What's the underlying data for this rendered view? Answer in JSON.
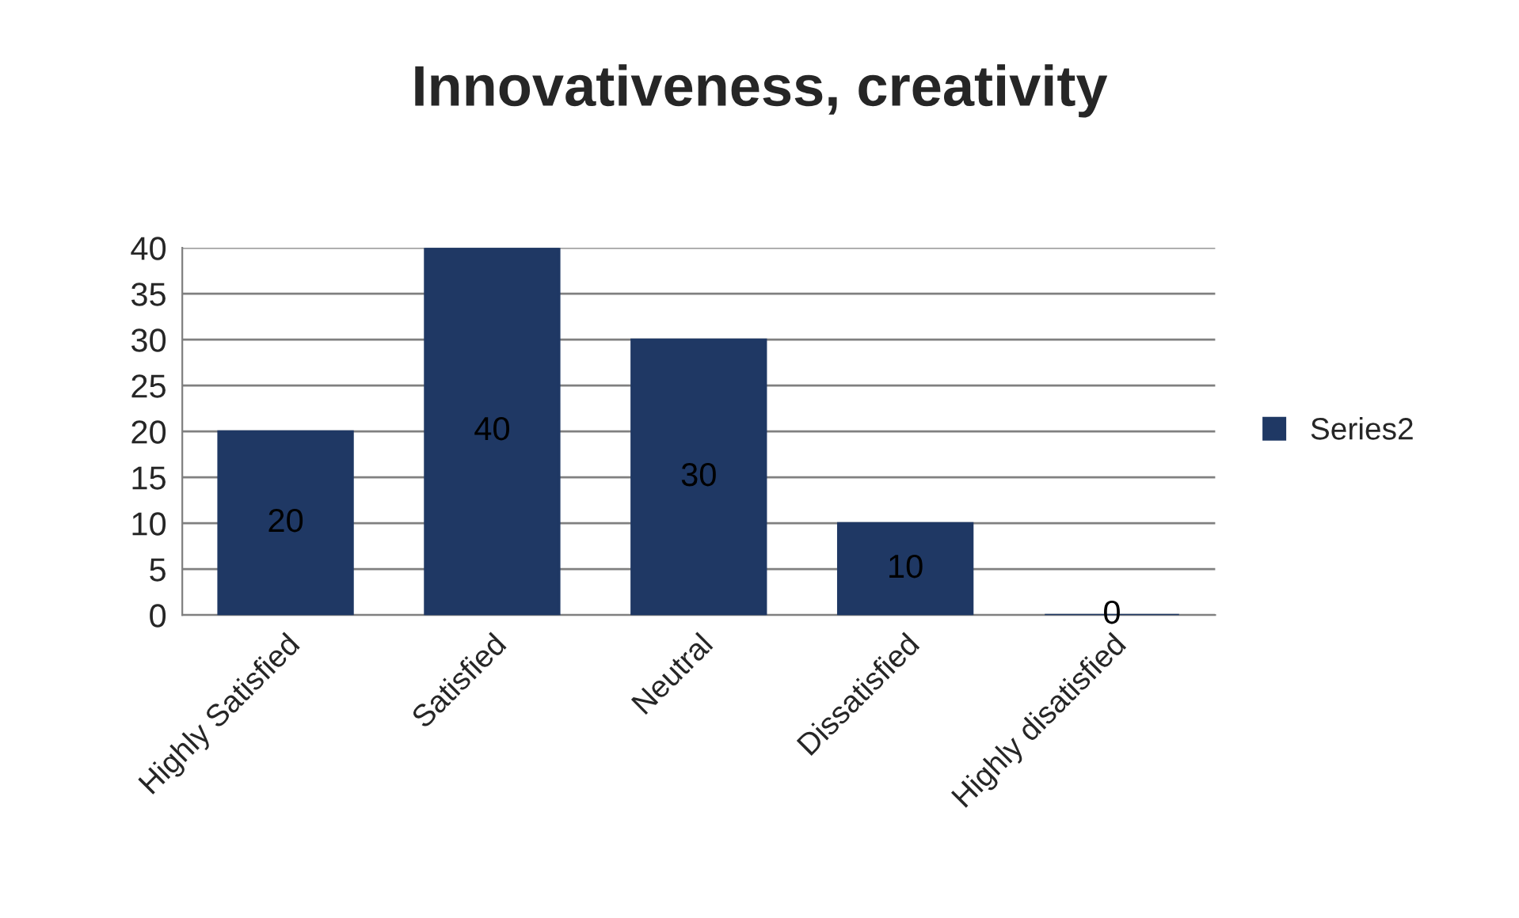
{
  "chart_data": {
    "type": "bar",
    "title": "Innovativeness, creativity",
    "categories": [
      "Highly Satisfied",
      "Satisfied",
      "Neutral",
      "Dissatisfied",
      "Highly disatisfied"
    ],
    "series": [
      {
        "name": "Series2",
        "color": "#1f3864",
        "values": [
          20,
          40,
          30,
          10,
          0
        ]
      }
    ],
    "ylim": [
      0,
      40
    ],
    "yticks": [
      0,
      5,
      10,
      15,
      20,
      25,
      30,
      35,
      40
    ],
    "grid": "y",
    "legend": "right",
    "data_labels": true
  }
}
